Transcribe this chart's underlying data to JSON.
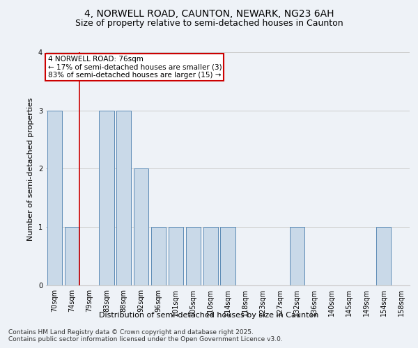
{
  "title_line1": "4, NORWELL ROAD, CAUNTON, NEWARK, NG23 6AH",
  "title_line2": "Size of property relative to semi-detached houses in Caunton",
  "xlabel": "Distribution of semi-detached houses by size in Caunton",
  "ylabel": "Number of semi-detached properties",
  "categories": [
    "70sqm",
    "74sqm",
    "79sqm",
    "83sqm",
    "88sqm",
    "92sqm",
    "96sqm",
    "101sqm",
    "105sqm",
    "110sqm",
    "114sqm",
    "118sqm",
    "123sqm",
    "127sqm",
    "132sqm",
    "136sqm",
    "140sqm",
    "145sqm",
    "149sqm",
    "154sqm",
    "158sqm"
  ],
  "values": [
    3,
    1,
    0,
    3,
    3,
    2,
    1,
    1,
    1,
    1,
    1,
    0,
    0,
    0,
    1,
    0,
    0,
    0,
    0,
    1,
    0
  ],
  "bar_color": "#c9d9e8",
  "bar_edge_color": "#5a8ab5",
  "annotation_title": "4 NORWELL ROAD: 76sqm",
  "annotation_line1": "← 17% of semi-detached houses are smaller (3)",
  "annotation_line2": "83% of semi-detached houses are larger (15) →",
  "annotation_box_color": "#ffffff",
  "annotation_box_edge_color": "#cc0000",
  "red_line_color": "#cc0000",
  "footnote_line1": "Contains HM Land Registry data © Crown copyright and database right 2025.",
  "footnote_line2": "Contains public sector information licensed under the Open Government Licence v3.0.",
  "ylim": [
    0,
    4
  ],
  "yticks": [
    0,
    1,
    2,
    3,
    4
  ],
  "grid_color": "#cccccc",
  "bg_color": "#eef2f7",
  "title_fontsize": 10,
  "subtitle_fontsize": 9,
  "axis_label_fontsize": 8,
  "tick_fontsize": 7,
  "annotation_fontsize": 7.5,
  "footnote_fontsize": 6.5
}
